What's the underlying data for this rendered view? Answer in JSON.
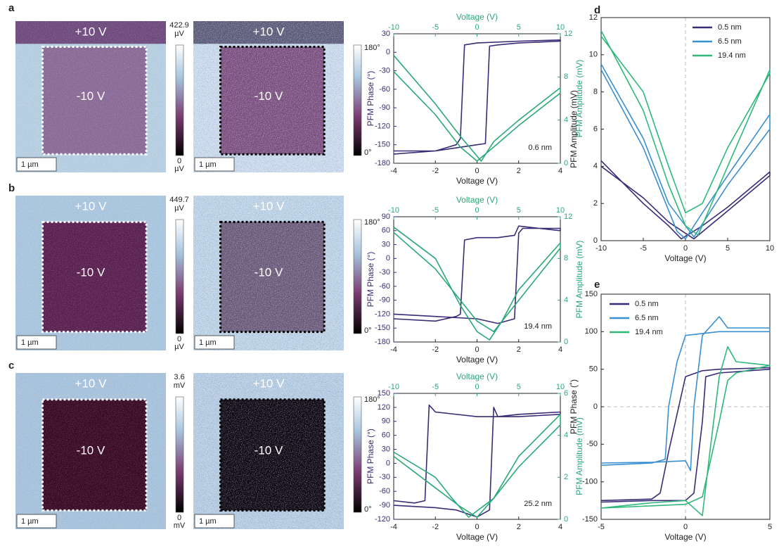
{
  "panel_labels": [
    "a",
    "b",
    "c",
    "d",
    "e"
  ],
  "images": [
    {
      "top_label": "+10 V",
      "inner_label": "-10 V",
      "scale_bar": "1 µm",
      "colorbar_max": {
        "value": "422.9",
        "unit": "µV"
      },
      "colorbar_min": {
        "value": "0",
        "unit": "µV"
      }
    },
    {
      "top_label": "+10 V",
      "inner_label": "-10 V",
      "scale_bar": "1 µm",
      "colorbar_max": {
        "value": "180°"
      },
      "colorbar_min": {
        "value": "0°"
      }
    },
    {
      "top_label": "+10 V",
      "inner_label": "-10 V",
      "scale_bar": "1 µm",
      "colorbar_max": {
        "value": "449.7",
        "unit": "µV"
      },
      "colorbar_min": {
        "value": "0",
        "unit": "µV"
      }
    },
    {
      "top_label": "+10 V",
      "inner_label": "-10 V",
      "scale_bar": "1 µm",
      "colorbar_max": {
        "value": "180°"
      },
      "colorbar_min": {
        "value": "0°"
      }
    },
    {
      "top_label": "+10 V",
      "inner_label": "-10 V",
      "scale_bar": "1 µm",
      "colorbar_max": {
        "value": "3.6",
        "unit": "mV"
      },
      "colorbar_min": {
        "value": "0",
        "unit": "mV"
      }
    },
    {
      "top_label": "+10 V",
      "inner_label": "-10 V",
      "scale_bar": "1 µm",
      "colorbar_max": {
        "value": "180°"
      },
      "colorbar_min": {
        "value": "0°"
      }
    }
  ],
  "chart_data": [
    {
      "type": "line",
      "x_label": "Voltage (V)",
      "x2_label": "Voltage (V)",
      "y_label": "PFM Phase (°)",
      "y2_label": "PFM Amplitude (mV)",
      "annotation": "0.6 nm",
      "xlim": [
        -4,
        4
      ],
      "xticks": [
        -4,
        -2,
        0,
        2,
        4
      ],
      "x2lim": [
        -10,
        10
      ],
      "x2ticks": [
        -10,
        -5,
        0,
        5,
        10
      ],
      "ylim": [
        -180,
        30
      ],
      "yticks": [
        -180,
        -150,
        -120,
        -90,
        -60,
        -30,
        0,
        30
      ],
      "y2lim": [
        0,
        12
      ],
      "y2ticks": [
        0,
        4,
        8,
        12
      ],
      "series": [
        {
          "color": "#3b2a75",
          "x": [
            -4,
            -2,
            -1,
            0,
            0.4,
            0.6,
            1,
            2,
            4,
            4,
            2,
            0,
            -0.6,
            -0.8,
            -1,
            -2,
            -4
          ],
          "values": [
            -160,
            -160,
            -155,
            -150,
            -148,
            10,
            12,
            15,
            18,
            20,
            18,
            15,
            12,
            -140,
            -150,
            -160,
            -165
          ]
        },
        {
          "color": "#2aa876",
          "axis": "y2",
          "x_axis": "x2",
          "x": [
            -10,
            -5,
            -2,
            0,
            2,
            5,
            10,
            10,
            5,
            2,
            0.5,
            -2,
            -5,
            -10
          ],
          "values": [
            8.5,
            4.5,
            1.5,
            0.2,
            1.5,
            3.5,
            6.5,
            7,
            4,
            2,
            0.2,
            2.5,
            5.5,
            10
          ]
        }
      ]
    },
    {
      "type": "line",
      "x_label": "Voltage (V)",
      "x2_label": "Voltage (V)",
      "y_label": "PFM Phase (°)",
      "y2_label": "PFM Amplitude (mV)",
      "annotation": "19.4 nm",
      "xlim": [
        -4,
        4
      ],
      "xticks": [
        -4,
        -2,
        0,
        2,
        4
      ],
      "x2lim": [
        -10,
        10
      ],
      "x2ticks": [
        -10,
        -5,
        0,
        5,
        10
      ],
      "ylim": [
        -180,
        90
      ],
      "yticks": [
        -180,
        -150,
        -120,
        -90,
        -60,
        -30,
        0,
        30,
        60,
        90
      ],
      "y2lim": [
        0,
        12
      ],
      "y2ticks": [
        0,
        4,
        8,
        12
      ],
      "series": [
        {
          "color": "#3b2a75",
          "x": [
            -4,
            -2,
            -1,
            -0.8,
            -0.6,
            0,
            1,
            1.8,
            2,
            4,
            4,
            2.2,
            2,
            1.8,
            1,
            0,
            -2,
            -4
          ],
          "values": [
            -130,
            -135,
            -125,
            -120,
            40,
            45,
            45,
            50,
            70,
            60,
            65,
            65,
            55,
            -130,
            -140,
            -130,
            -125,
            -120
          ]
        },
        {
          "color": "#2aa876",
          "axis": "y2",
          "x_axis": "x2",
          "x": [
            -10,
            -5,
            -2,
            0,
            1.5,
            3,
            5,
            10,
            10,
            5,
            2,
            0,
            -2,
            -5,
            -10
          ],
          "values": [
            11,
            8,
            3.5,
            1,
            0.2,
            2,
            5,
            9.5,
            9,
            4,
            1,
            2,
            4,
            7,
            10.5
          ]
        }
      ]
    },
    {
      "type": "line",
      "x_label": "Voltage (V)",
      "x2_label": "Voltage (V)",
      "y_label": "PFM Phase (°)",
      "y2_label": "PFM Amplitude (mV)",
      "annotation": "25.2 nm",
      "xlim": [
        -4,
        4
      ],
      "xticks": [
        -4,
        -2,
        0,
        2,
        4
      ],
      "x2lim": [
        -10,
        10
      ],
      "x2ticks": [
        -10,
        -5,
        0,
        5,
        10
      ],
      "ylim": [
        -120,
        150
      ],
      "yticks": [
        -120,
        -90,
        -60,
        -30,
        0,
        30,
        60,
        90,
        120,
        150
      ],
      "y2lim": [
        0,
        6
      ],
      "y2ticks": [
        0,
        2,
        4,
        6
      ],
      "series": [
        {
          "color": "#3b2a75",
          "x": [
            -4,
            -3,
            -2.5,
            -2.3,
            -2,
            0,
            2,
            4,
            4,
            2,
            1,
            0.8,
            0.6,
            0,
            -1,
            -2,
            -4
          ],
          "values": [
            -80,
            -85,
            -80,
            125,
            110,
            100,
            100,
            105,
            110,
            105,
            100,
            120,
            -100,
            -115,
            -100,
            -95,
            -90
          ]
        },
        {
          "color": "#2aa876",
          "axis": "y2",
          "x_axis": "x2",
          "x": [
            -10,
            -5,
            -2,
            0,
            2,
            5,
            10,
            10,
            5,
            2,
            -1,
            -3,
            -5,
            -10
          ],
          "values": [
            3,
            1.5,
            0.6,
            0.1,
            1,
            2.5,
            4.5,
            5,
            3,
            1,
            0.1,
            1,
            2,
            3.2
          ]
        }
      ]
    },
    {
      "type": "line",
      "x_label": "Voltage (V)",
      "y_label": "PFM Amplitude (mV)",
      "legend": "upper right",
      "xlim": [
        -10,
        10
      ],
      "xticks": [
        -10,
        -5,
        0,
        5,
        10
      ],
      "ylim": [
        0,
        12
      ],
      "yticks": [
        0,
        2,
        4,
        6,
        8,
        10,
        12
      ],
      "series": [
        {
          "name": "0.5 nm",
          "color": "#3b2a75",
          "x": [
            -10,
            -5,
            -2,
            -0.5,
            2,
            5,
            10,
            10,
            5,
            1,
            -2,
            -5,
            -10
          ],
          "values": [
            4.3,
            2,
            0.8,
            0.1,
            0.8,
            1.8,
            3.7,
            3.5,
            1.6,
            0.1,
            1,
            2.3,
            4
          ]
        },
        {
          "name": "6.5 nm",
          "color": "#3a8fd0",
          "x": [
            -10,
            -5,
            -1,
            0,
            2,
            5,
            10,
            10,
            5,
            1,
            -2,
            -5,
            -10
          ],
          "values": [
            9.2,
            5,
            0.5,
            0.1,
            1.5,
            3.5,
            6.8,
            6,
            3,
            0.2,
            2,
            5.5,
            9.5
          ]
        },
        {
          "name": "19.4 nm",
          "color": "#2eb87a",
          "x": [
            -10,
            -5,
            -2,
            0,
            1.5,
            5,
            10,
            10,
            5,
            2,
            0,
            -2,
            -5,
            -10
          ],
          "values": [
            11.3,
            7,
            3,
            0.8,
            0.3,
            4,
            9.2,
            9,
            5,
            2,
            1.5,
            4,
            8,
            11
          ]
        }
      ]
    },
    {
      "type": "line",
      "x_label": "Voltage (V)",
      "y_label": "PFM Phase (˚)",
      "legend": "upper left",
      "xlim": [
        -5,
        5
      ],
      "xticks": [
        -5,
        0,
        5
      ],
      "ylim": [
        -150,
        150
      ],
      "yticks": [
        -150,
        -100,
        -50,
        0,
        50,
        100,
        150
      ],
      "series": [
        {
          "name": "0.5 nm",
          "color": "#3b2a75",
          "x": [
            -5,
            -2,
            -1.5,
            -1,
            0,
            1,
            2,
            5,
            5,
            2,
            1.2,
            1,
            0.5,
            0,
            -2,
            -5
          ],
          "values": [
            -125,
            -123,
            -115,
            -60,
            40,
            48,
            50,
            52,
            50,
            45,
            40,
            -20,
            -115,
            -125,
            -125,
            -127
          ]
        },
        {
          "name": "6.5 nm",
          "color": "#3a8fd0",
          "x": [
            -5,
            -2,
            0,
            0.3,
            0.5,
            1,
            2,
            2.5,
            5,
            5,
            2,
            0,
            -0.5,
            -1,
            -1.2,
            -2,
            -5
          ],
          "values": [
            -75,
            -74,
            -72,
            -85,
            0,
            95,
            120,
            105,
            105,
            100,
            100,
            95,
            60,
            0,
            -70,
            -75,
            -78
          ]
        },
        {
          "name": "19.4 nm",
          "color": "#2eb87a",
          "x": [
            -5,
            -2,
            0,
            1,
            1.5,
            2,
            2.5,
            3,
            5,
            5,
            3,
            2.5,
            2,
            1,
            0,
            -2,
            -5
          ],
          "values": [
            -135,
            -128,
            -125,
            -145,
            -50,
            40,
            80,
            60,
            55,
            55,
            45,
            35,
            -20,
            -120,
            -130,
            -132,
            -135
          ]
        }
      ]
    }
  ]
}
